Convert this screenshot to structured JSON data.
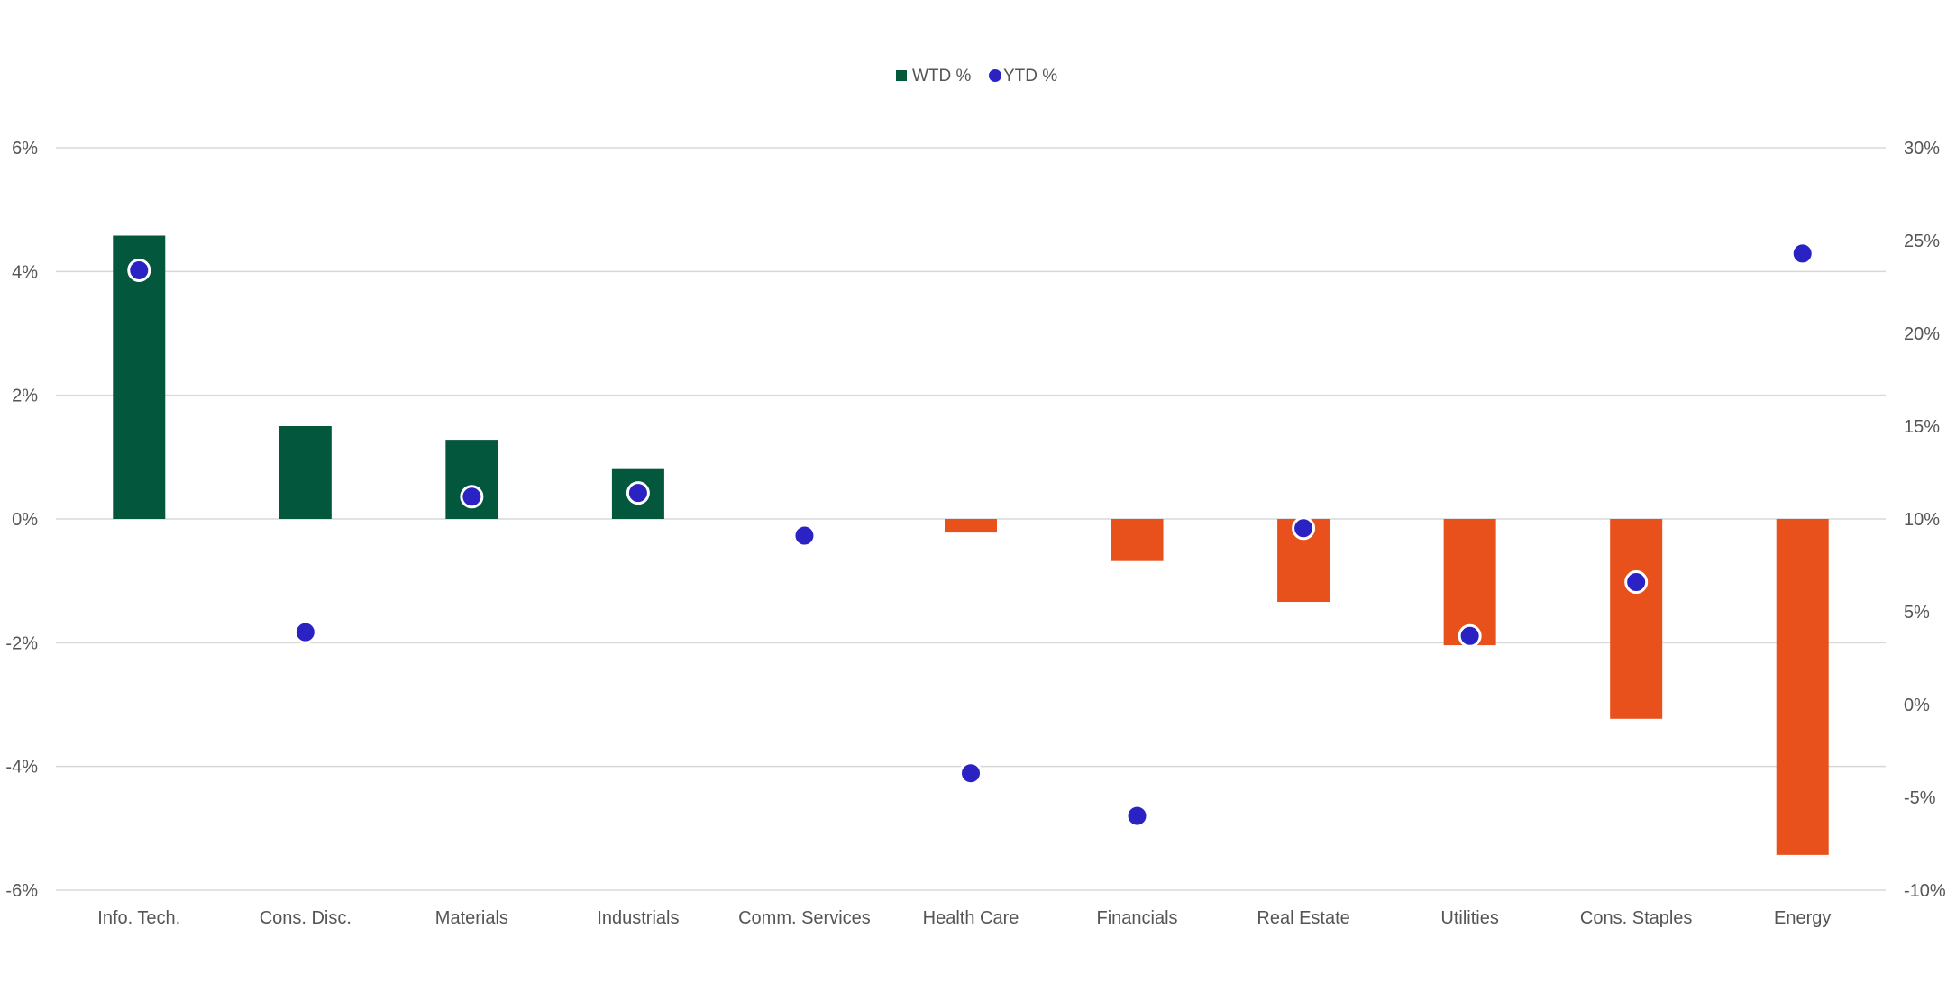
{
  "chart_data": {
    "type": "bar",
    "categories": [
      "Info. Tech.",
      "Cons. Disc.",
      "Materials",
      "Industrials",
      "Comm. Services",
      "Health Care",
      "Financials",
      "Real Estate",
      "Utilities",
      "Cons. Staples",
      "Energy"
    ],
    "series": [
      {
        "name": "WTD %",
        "type": "bar",
        "axis": "left",
        "values": [
          4.58,
          1.5,
          1.28,
          0.82,
          0.0,
          -0.22,
          -0.68,
          -1.34,
          -2.04,
          -3.23,
          -5.43
        ]
      },
      {
        "name": "YTD %",
        "type": "scatter",
        "axis": "right",
        "values": [
          23.4,
          3.9,
          11.2,
          11.4,
          9.1,
          -3.7,
          -6.0,
          9.5,
          3.7,
          6.6,
          24.3
        ]
      }
    ],
    "y_left": {
      "ylim": [
        -6,
        6
      ],
      "ticks": [
        6,
        4,
        2,
        0,
        -2,
        -4,
        -6
      ],
      "tick_labels": [
        "6%",
        "4%",
        "2%",
        "0%",
        "-2%",
        "-4%",
        "-6%"
      ]
    },
    "y_right": {
      "ylim": [
        -10,
        30
      ],
      "ticks": [
        30,
        25,
        20,
        15,
        10,
        5,
        0,
        -5,
        -10
      ],
      "tick_labels": [
        "30%",
        "25%",
        "20%",
        "15%",
        "10%",
        "5%",
        "0%",
        "-5%",
        "-10%"
      ]
    },
    "grid": true,
    "legend_position": "top-center",
    "colors": {
      "bar_positive": "#03573d",
      "bar_negative": "#e8501c",
      "point": "#2a22c2",
      "point_outline": "#ffffff",
      "grid": "#d8d8d8",
      "tick_text": "#555555",
      "legend_text": "#555555"
    }
  }
}
